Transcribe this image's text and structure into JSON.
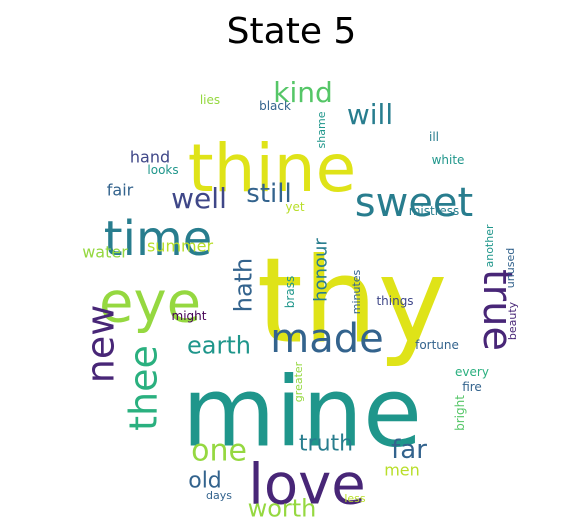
{
  "title": "State 5",
  "palette": {
    "yellow": "#dfe318",
    "yellow_green": "#b8de29",
    "light_green": "#95d840",
    "green": "#55c667",
    "teal_green": "#2ab07f",
    "teal": "#1f968b",
    "blue_teal": "#287d8e",
    "blue": "#33638d",
    "dark_blue": "#3f4788",
    "purple": "#482677",
    "dark_purple": "#440154"
  },
  "words": [
    {
      "text": "thy",
      "color": "yellow"
    },
    {
      "text": "mine",
      "color": "teal"
    },
    {
      "text": "thine",
      "color": "yellow"
    },
    {
      "text": "love",
      "color": "purple"
    },
    {
      "text": "eye",
      "color": "light_green"
    },
    {
      "text": "time",
      "color": "blue_teal"
    },
    {
      "text": "sweet",
      "color": "blue_teal"
    },
    {
      "text": "made",
      "color": "blue"
    },
    {
      "text": "true",
      "color": "purple"
    },
    {
      "text": "new",
      "color": "purple"
    },
    {
      "text": "thee",
      "color": "teal_green"
    },
    {
      "text": "one",
      "color": "light_green"
    },
    {
      "text": "kind",
      "color": "green"
    },
    {
      "text": "will",
      "color": "blue_teal"
    },
    {
      "text": "well",
      "color": "dark_blue"
    },
    {
      "text": "still",
      "color": "blue"
    },
    {
      "text": "earth",
      "color": "teal"
    },
    {
      "text": "hath",
      "color": "blue"
    },
    {
      "text": "honour",
      "color": "blue_teal"
    },
    {
      "text": "truth",
      "color": "blue_teal"
    },
    {
      "text": "far",
      "color": "blue"
    },
    {
      "text": "old",
      "color": "blue"
    },
    {
      "text": "worth",
      "color": "light_green"
    },
    {
      "text": "men",
      "color": "yellow_green"
    },
    {
      "text": "hand",
      "color": "dark_blue"
    },
    {
      "text": "fair",
      "color": "blue"
    },
    {
      "text": "water",
      "color": "light_green"
    },
    {
      "text": "summer",
      "color": "yellow_green"
    },
    {
      "text": "lies",
      "color": "light_green"
    },
    {
      "text": "black",
      "color": "blue"
    },
    {
      "text": "shame",
      "color": "teal"
    },
    {
      "text": "ill",
      "color": "blue_teal"
    },
    {
      "text": "looks",
      "color": "teal"
    },
    {
      "text": "white",
      "color": "teal"
    },
    {
      "text": "yet",
      "color": "yellow_green"
    },
    {
      "text": "mistress",
      "color": "blue_teal"
    },
    {
      "text": "another",
      "color": "teal"
    },
    {
      "text": "unused",
      "color": "blue"
    },
    {
      "text": "beauty",
      "color": "purple"
    },
    {
      "text": "brass",
      "color": "teal"
    },
    {
      "text": "minutes",
      "color": "blue"
    },
    {
      "text": "things",
      "color": "dark_blue"
    },
    {
      "text": "might",
      "color": "dark_purple"
    },
    {
      "text": "fortune",
      "color": "blue"
    },
    {
      "text": "every",
      "color": "teal_green"
    },
    {
      "text": "fire",
      "color": "blue"
    },
    {
      "text": "greater",
      "color": "light_green"
    },
    {
      "text": "bright",
      "color": "green"
    },
    {
      "text": "days",
      "color": "blue"
    },
    {
      "text": "less",
      "color": "yellow_green"
    }
  ]
}
